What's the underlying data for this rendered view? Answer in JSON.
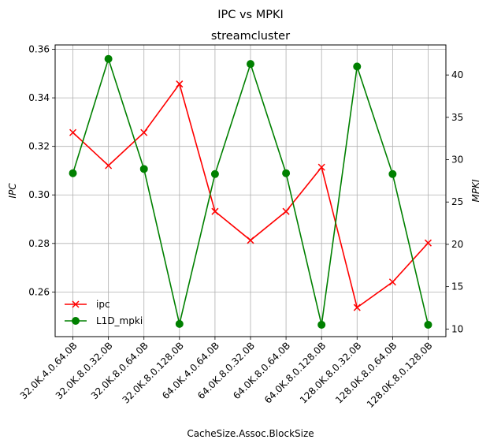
{
  "chart_data": {
    "type": "line",
    "suptitle": "IPC vs MPKI",
    "title": "streamcluster",
    "xlabel": "CacheSize.Assoc.BlockSize",
    "ylabel_left": "IPC",
    "ylabel_right": "MPKI",
    "categories": [
      "32.0K.4.0.64.0B",
      "32.0K.8.0.32.0B",
      "32.0K.8.0.64.0B",
      "32.0K.8.0.128.0B",
      "64.0K.4.0.64.0B",
      "64.0K.8.0.32.0B",
      "64.0K.8.0.64.0B",
      "64.0K.8.0.128.0B",
      "128.0K.8.0.32.0B",
      "128.0K.8.0.64.0B",
      "128.0K.8.0.128.0B"
    ],
    "ylim_left": [
      0.2416,
      0.3618
    ],
    "yticks_left": [
      "0.26",
      "0.28",
      "0.30",
      "0.32",
      "0.34",
      "0.36"
    ],
    "ylim_right": [
      9.1,
      43.55
    ],
    "yticks_right": [
      "10",
      "15",
      "20",
      "25",
      "30",
      "35",
      "40"
    ],
    "grid": true,
    "legend_position": "lower-left",
    "series": [
      {
        "name": "ipc",
        "axis": "left",
        "color": "#ff0000",
        "marker": "x",
        "values": [
          0.3257,
          0.3121,
          0.3257,
          0.3457,
          0.2932,
          0.2813,
          0.2932,
          0.3114,
          0.2536,
          0.2641,
          0.2802
        ]
      },
      {
        "name": "L1D_mpki",
        "axis": "right",
        "color": "#008000",
        "marker": "o",
        "values": [
          28.4,
          41.9,
          28.9,
          10.6,
          28.3,
          41.3,
          28.4,
          10.5,
          41.0,
          28.3,
          10.5
        ]
      }
    ]
  }
}
